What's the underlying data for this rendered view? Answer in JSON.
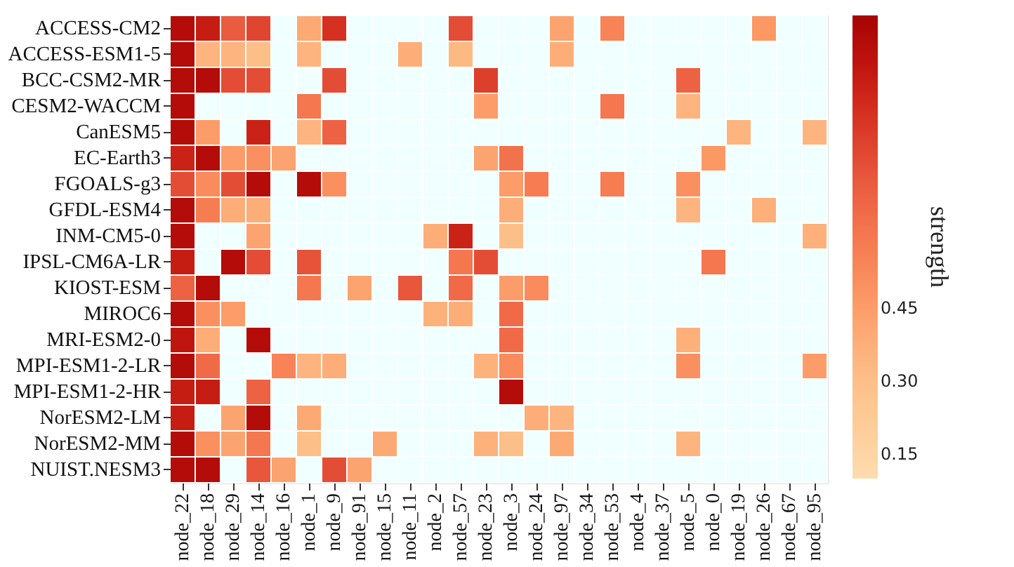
{
  "chart_data": {
    "type": "heatmap",
    "clabel": "strength",
    "categories": [
      "node_22",
      "node_18",
      "node_29",
      "node_14",
      "node_16",
      "node_1",
      "node_9",
      "node_91",
      "node_15",
      "node_11",
      "node_2",
      "node_57",
      "node_23",
      "node_3",
      "node_24",
      "node_97",
      "node_34",
      "node_53",
      "node_4",
      "node_37",
      "node_5",
      "node_0",
      "node_19",
      "node_26",
      "node_67",
      "node_95"
    ],
    "y_categories": [
      "ACCESS-CM2",
      "ACCESS-ESM1-5",
      "BCC-CSM2-MR",
      "CESM2-WACCM",
      "CanESM5",
      "EC-Earth3",
      "FGOALS-g3",
      "GFDL-ESM4",
      "INM-CM5-0",
      "IPSL-CM6A-LR",
      "KIOST-ESM",
      "MIROC6",
      "MRI-ESM2-0",
      "MPI-ESM1-2-LR",
      "MPI-ESM1-2-HR",
      "NorESM2-LM",
      "NorESM2-MM",
      "NUIST.NESM3"
    ],
    "cells": [
      [
        1.0,
        0.92,
        0.7,
        0.78,
        null,
        0.4,
        0.85,
        null,
        null,
        null,
        null,
        0.75,
        null,
        null,
        null,
        0.42,
        null,
        0.55,
        null,
        null,
        null,
        null,
        null,
        0.47,
        null,
        null
      ],
      [
        1.0,
        0.35,
        0.35,
        0.3,
        null,
        0.35,
        null,
        null,
        null,
        0.38,
        null,
        0.33,
        null,
        null,
        null,
        0.38,
        null,
        null,
        null,
        null,
        null,
        null,
        null,
        null,
        null,
        null
      ],
      [
        1.0,
        1.0,
        0.75,
        0.75,
        null,
        null,
        0.75,
        null,
        null,
        null,
        null,
        null,
        0.8,
        null,
        null,
        null,
        null,
        null,
        null,
        null,
        0.68,
        null,
        null,
        null,
        null,
        null
      ],
      [
        1.0,
        null,
        null,
        null,
        null,
        0.6,
        null,
        null,
        null,
        null,
        null,
        null,
        0.45,
        null,
        null,
        null,
        null,
        0.6,
        null,
        null,
        0.35,
        null,
        null,
        null,
        null,
        null
      ],
      [
        1.0,
        0.45,
        null,
        0.9,
        null,
        0.35,
        0.68,
        null,
        null,
        null,
        null,
        null,
        null,
        null,
        null,
        null,
        null,
        null,
        null,
        null,
        null,
        null,
        0.35,
        null,
        null,
        0.35
      ],
      [
        0.9,
        1.0,
        0.45,
        0.5,
        0.42,
        null,
        null,
        null,
        null,
        null,
        null,
        null,
        0.42,
        0.62,
        null,
        null,
        null,
        null,
        null,
        null,
        null,
        0.47,
        null,
        null,
        null,
        null
      ],
      [
        0.75,
        0.52,
        0.75,
        1.0,
        null,
        1.0,
        0.5,
        null,
        null,
        null,
        null,
        null,
        null,
        0.45,
        0.58,
        null,
        null,
        0.58,
        null,
        null,
        0.5,
        null,
        null,
        null,
        null,
        null
      ],
      [
        1.0,
        0.58,
        0.38,
        0.38,
        null,
        null,
        null,
        null,
        null,
        null,
        null,
        null,
        null,
        0.38,
        null,
        null,
        null,
        null,
        null,
        null,
        0.35,
        null,
        null,
        0.37,
        null,
        null
      ],
      [
        1.0,
        null,
        null,
        0.42,
        null,
        null,
        null,
        null,
        null,
        null,
        0.38,
        0.9,
        null,
        0.3,
        null,
        null,
        null,
        null,
        null,
        null,
        null,
        null,
        null,
        null,
        null,
        0.37
      ],
      [
        0.92,
        null,
        1.0,
        0.75,
        null,
        0.73,
        null,
        null,
        null,
        null,
        null,
        0.6,
        0.75,
        null,
        null,
        null,
        null,
        null,
        null,
        null,
        null,
        0.6,
        null,
        null,
        null,
        null
      ],
      [
        0.68,
        1.0,
        null,
        null,
        null,
        0.6,
        null,
        0.42,
        null,
        0.72,
        null,
        0.65,
        null,
        0.45,
        0.52,
        null,
        null,
        null,
        null,
        null,
        null,
        null,
        null,
        null,
        null,
        null
      ],
      [
        1.0,
        0.5,
        0.45,
        null,
        null,
        null,
        null,
        null,
        null,
        null,
        0.36,
        0.38,
        null,
        0.65,
        null,
        null,
        null,
        null,
        null,
        null,
        null,
        null,
        null,
        null,
        null,
        null
      ],
      [
        0.95,
        0.38,
        null,
        1.0,
        null,
        null,
        null,
        null,
        null,
        null,
        null,
        null,
        null,
        0.65,
        null,
        null,
        null,
        null,
        null,
        null,
        0.37,
        null,
        null,
        null,
        null,
        null
      ],
      [
        1.0,
        0.65,
        null,
        null,
        0.55,
        0.35,
        0.38,
        null,
        null,
        null,
        null,
        null,
        0.36,
        0.52,
        null,
        null,
        null,
        null,
        null,
        null,
        0.5,
        null,
        null,
        null,
        null,
        0.45
      ],
      [
        0.92,
        0.92,
        null,
        0.68,
        null,
        null,
        null,
        null,
        null,
        null,
        null,
        null,
        null,
        1.0,
        null,
        null,
        null,
        null,
        null,
        null,
        null,
        null,
        null,
        null,
        null,
        null
      ],
      [
        0.92,
        null,
        0.42,
        1.0,
        null,
        0.4,
        null,
        null,
        null,
        null,
        null,
        null,
        null,
        null,
        0.38,
        0.35,
        null,
        null,
        null,
        null,
        null,
        null,
        null,
        null,
        null,
        null
      ],
      [
        1.0,
        0.5,
        0.42,
        0.6,
        null,
        0.3,
        null,
        null,
        0.4,
        null,
        null,
        null,
        0.36,
        0.3,
        null,
        0.4,
        null,
        null,
        null,
        null,
        0.35,
        null,
        null,
        null,
        null,
        null
      ],
      [
        1.0,
        1.0,
        null,
        0.72,
        0.42,
        null,
        0.75,
        0.42,
        null,
        null,
        null,
        null,
        null,
        null,
        null,
        null,
        null,
        null,
        null,
        null,
        null,
        null,
        null,
        null,
        null,
        null
      ]
    ],
    "clim": [
      0.1,
      1.05
    ],
    "cticks": [
      0.15,
      {
        "value": 0.3,
        "label": "0.30"
      },
      0.45
    ]
  }
}
